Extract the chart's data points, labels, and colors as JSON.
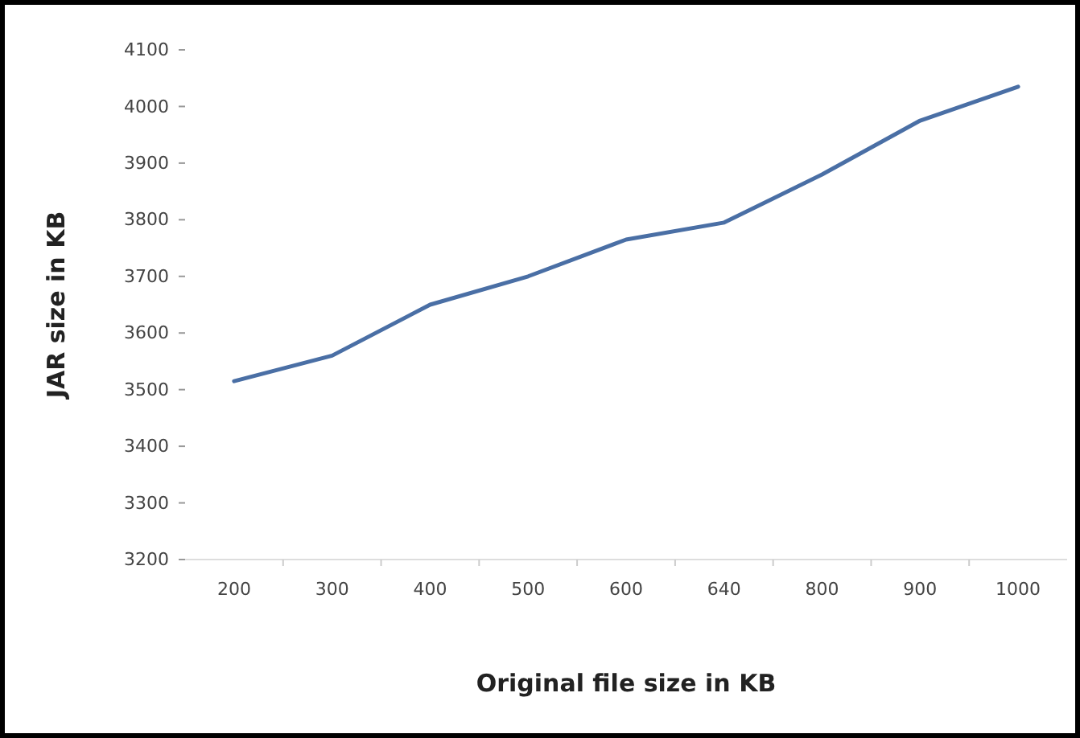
{
  "chart_data": {
    "type": "line",
    "xlabel": "Original file size in KB",
    "ylabel": "JAR size in KB",
    "categories": [
      "200",
      "300",
      "400",
      "500",
      "600",
      "640",
      "800",
      "900",
      "1000"
    ],
    "series": [
      {
        "color": "#4a6fa5",
        "values": [
          3515,
          3560,
          3650,
          3700,
          3765,
          3795,
          3880,
          3975,
          4035
        ]
      }
    ],
    "ylim": [
      3200,
      4100
    ],
    "yticks": [
      3200,
      3300,
      3400,
      3500,
      3600,
      3700,
      3800,
      3900,
      4000,
      4100
    ],
    "grid": false,
    "marker": "none",
    "line_style": "solid"
  }
}
